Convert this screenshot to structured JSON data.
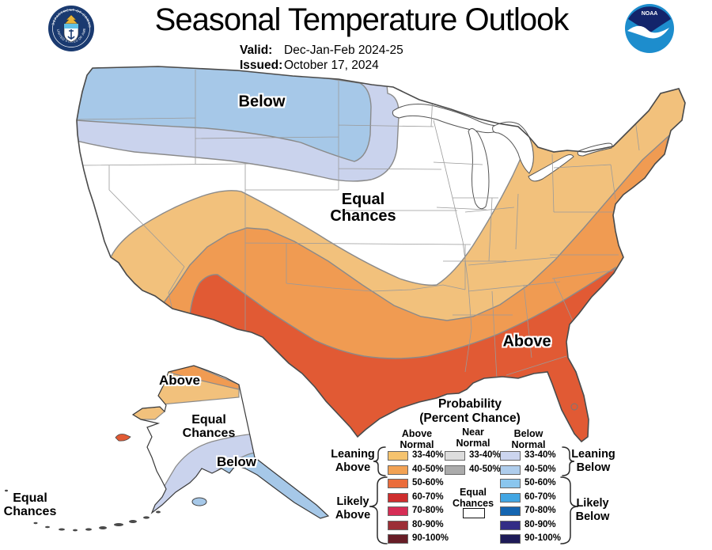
{
  "header": {
    "title": "Seasonal Temperature Outlook",
    "valid_label": "Valid:",
    "valid_value": "Dec-Jan-Feb 2024-25",
    "issued_label": "Issued:",
    "issued_value": "October 17, 2024"
  },
  "logos": {
    "noaa_text": "NOAA",
    "seal_top_text": "DEPARTMENT OF COMMERCE",
    "seal_bottom_text": "UNITED STATES OF AMERICA",
    "noaa_navy": "#13246B",
    "noaa_blue": "#1D8DCD",
    "seal_navy": "#1A3A70"
  },
  "map_labels": {
    "nw_below": "Below",
    "center_equal_1": "Equal",
    "center_equal_2": "Chances",
    "se_above": "Above",
    "ak_above": "Above",
    "ak_equal_1": "Equal",
    "ak_equal_2": "Chances",
    "ak_below": "Below",
    "corner_equal_1": "Equal",
    "corner_equal_2": "Chances"
  },
  "map_colors": {
    "land": "#FFFFFF",
    "coast": "#4A4A4A",
    "state_border": "#9A9A9A",
    "band_edge": "#8A8A8A",
    "above_33_40": "#F2C17C",
    "above_40_50": "#F09B52",
    "above_50_60": "#E15A34",
    "below_33_40": "#CAD3ED",
    "below_40_50": "#A6C8E8"
  },
  "legend": {
    "title_1": "Probability",
    "title_2": "(Percent Chance)",
    "col_above_1": "Above",
    "col_above_2": "Normal",
    "col_near_1": "Near",
    "col_near_2": "Normal",
    "col_below_1": "Below",
    "col_below_2": "Normal",
    "above_rows": [
      {
        "range": "33-40%",
        "color": "#F5C36E"
      },
      {
        "range": "40-50%",
        "color": "#F2A254"
      },
      {
        "range": "50-60%",
        "color": "#EA6C3B"
      },
      {
        "range": "60-70%",
        "color": "#CE2D2D"
      },
      {
        "range": "70-80%",
        "color": "#D62D55"
      },
      {
        "range": "80-90%",
        "color": "#9C2E36"
      },
      {
        "range": "90-100%",
        "color": "#671D26"
      }
    ],
    "near_rows": [
      {
        "range": "33-40%",
        "color": "#DDDDDD"
      },
      {
        "range": "40-50%",
        "color": "#ABABAB"
      }
    ],
    "below_rows": [
      {
        "range": "33-40%",
        "color": "#CCD5EF"
      },
      {
        "range": "40-50%",
        "color": "#AFCDEC"
      },
      {
        "range": "50-60%",
        "color": "#8AC6EE"
      },
      {
        "range": "60-70%",
        "color": "#42A6E3"
      },
      {
        "range": "70-80%",
        "color": "#1465B1"
      },
      {
        "range": "80-90%",
        "color": "#332D86"
      },
      {
        "range": "90-100%",
        "color": "#1E1B57"
      }
    ],
    "equal_1": "Equal",
    "equal_2": "Chances",
    "equal_box_color": "#FFFFFF",
    "leaning_above_1": "Leaning",
    "leaning_above_2": "Above",
    "likely_above_1": "Likely",
    "likely_above_2": "Above",
    "leaning_below_1": "Leaning",
    "leaning_below_2": "Below",
    "likely_below_1": "Likely",
    "likely_below_2": "Below"
  }
}
